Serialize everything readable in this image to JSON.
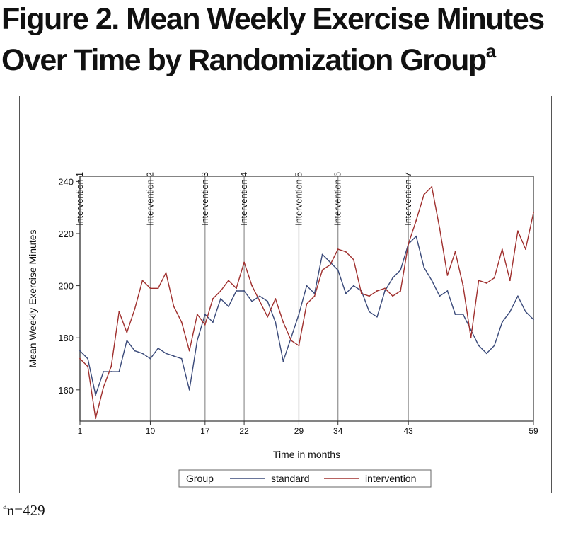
{
  "title": {
    "line1": "Figure 2. Mean Weekly Exercise Minutes",
    "line2": "Over Time by Randomization Group",
    "superscript": "a"
  },
  "footnote": {
    "superscript": "a",
    "text": "n=429"
  },
  "colors": {
    "standard": "#3a4a7a",
    "intervention": "#a0302e",
    "reference_line": "#999999",
    "axis": "#333333"
  },
  "chart_data": {
    "type": "line",
    "title": "",
    "xlabel": "Time in months",
    "ylabel": "Mean Weekly Exercise Minutes",
    "xlim": [
      1,
      59
    ],
    "ylim": [
      148,
      242
    ],
    "x_ticks": [
      1,
      10,
      17,
      22,
      29,
      34,
      43,
      59
    ],
    "y_ticks": [
      160,
      180,
      200,
      220,
      240
    ],
    "grid": false,
    "reference_lines": [
      {
        "x": 1,
        "label": "Intervention 1"
      },
      {
        "x": 10,
        "label": "Intervention 2"
      },
      {
        "x": 17,
        "label": "Intervention 3"
      },
      {
        "x": 22,
        "label": "Intervention 4"
      },
      {
        "x": 29,
        "label": "Intervention 5"
      },
      {
        "x": 34,
        "label": "Intervention 6"
      },
      {
        "x": 43,
        "label": "Intervention 7"
      }
    ],
    "legend": {
      "title": "Group",
      "position": "bottom"
    },
    "x": [
      1,
      2,
      3,
      4,
      5,
      6,
      7,
      8,
      9,
      10,
      11,
      12,
      13,
      14,
      15,
      16,
      17,
      18,
      19,
      20,
      21,
      22,
      23,
      24,
      25,
      26,
      27,
      28,
      29,
      30,
      31,
      32,
      33,
      34,
      35,
      36,
      37,
      38,
      39,
      40,
      41,
      42,
      43,
      44,
      45,
      46,
      47,
      48,
      49,
      50,
      51,
      52,
      53,
      54,
      55,
      56,
      57,
      58,
      59
    ],
    "series": [
      {
        "name": "standard",
        "values": [
          175,
          172,
          158,
          167,
          167,
          167,
          179,
          175,
          174,
          172,
          176,
          174,
          173,
          172,
          160,
          179,
          189,
          186,
          195,
          192,
          198,
          198,
          194,
          196,
          194,
          186,
          171,
          180,
          189,
          200,
          197,
          212,
          209,
          206,
          197,
          200,
          198,
          190,
          188,
          198,
          203,
          206,
          216,
          219,
          207,
          202,
          196,
          198,
          189,
          189,
          183,
          177,
          174,
          177,
          186,
          190,
          196,
          190,
          187
        ]
      },
      {
        "name": "intervention",
        "values": [
          172,
          169,
          149,
          161,
          169,
          190,
          182,
          191,
          202,
          199,
          199,
          205,
          192,
          186,
          175,
          189,
          185,
          195,
          198,
          202,
          199,
          209,
          200,
          194,
          188,
          195,
          186,
          179,
          177,
          193,
          196,
          206,
          208,
          214,
          213,
          210,
          197,
          196,
          198,
          199,
          196,
          198,
          216,
          225,
          235,
          238,
          222,
          204,
          213,
          200,
          180,
          202,
          201,
          203,
          214,
          202,
          221,
          214,
          228
        ]
      }
    ]
  }
}
